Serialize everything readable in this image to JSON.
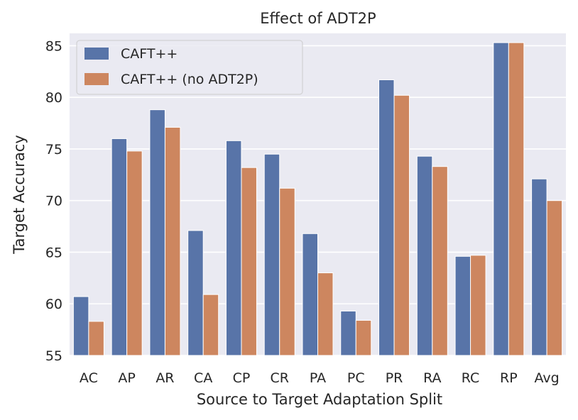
{
  "chart_data": {
    "type": "bar",
    "title": "Effect of ADT2P",
    "xlabel": "Source to Target Adaptation Split",
    "ylabel": "Target Accuracy",
    "ylim": [
      55,
      86.2
    ],
    "yticks": [
      55,
      60,
      65,
      70,
      75,
      80,
      85
    ],
    "categories": [
      "AC",
      "AP",
      "AR",
      "CA",
      "CP",
      "CR",
      "PA",
      "PC",
      "PR",
      "RA",
      "RC",
      "RP",
      "Avg"
    ],
    "series": [
      {
        "name": "CAFT++",
        "color": "#5874a8",
        "values": [
          60.7,
          76.0,
          78.8,
          67.1,
          75.8,
          74.5,
          66.8,
          59.3,
          81.7,
          74.3,
          64.6,
          85.3,
          72.1
        ]
      },
      {
        "name": "CAFT++ (no ADT2P)",
        "color": "#cd865f",
        "values": [
          58.3,
          74.8,
          77.1,
          60.9,
          73.2,
          71.2,
          63.0,
          58.4,
          80.2,
          73.3,
          64.7,
          85.3,
          70.0
        ]
      }
    ],
    "legend_position": "top-left",
    "grid": true
  }
}
